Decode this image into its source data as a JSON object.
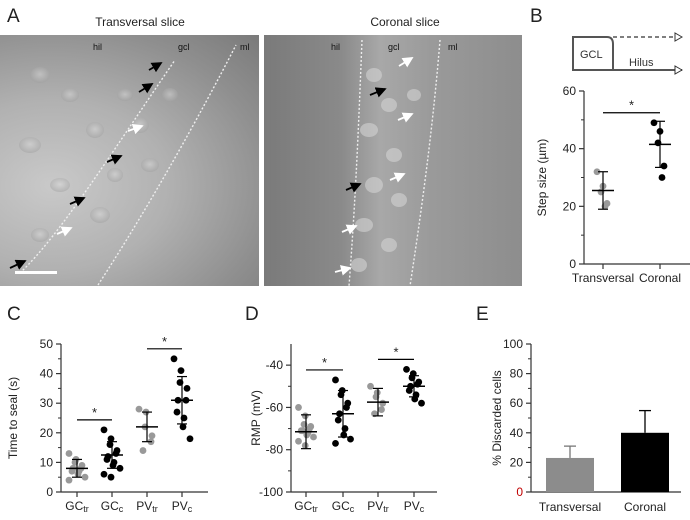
{
  "panels": {
    "a": {
      "letter": "A",
      "titles": [
        "Transversal slice",
        "Coronal slice"
      ],
      "layers_left": [
        "hil",
        "gcl",
        "ml"
      ],
      "layers_right": [
        "hil",
        "gcl",
        "ml"
      ]
    },
    "b": {
      "letter": "B",
      "schematic": {
        "gcl_label": "GCL",
        "hilus_label": "Hilus"
      }
    },
    "c": {
      "letter": "C"
    },
    "d": {
      "letter": "D"
    },
    "e": {
      "letter": "E"
    }
  },
  "chart_data": [
    {
      "id": "B",
      "type": "scatter",
      "xlabel": "",
      "ylabel": "Step size (µm)",
      "ylim": [
        0,
        60
      ],
      "yticks": [
        0,
        20,
        40,
        60
      ],
      "categories": [
        "Transversal",
        "Coronal"
      ],
      "series": [
        {
          "points": [
            32,
            27,
            25,
            21,
            20
          ],
          "mean": 25.5,
          "sd": 6.5,
          "color": "#999999"
        },
        {
          "points": [
            49,
            46,
            42,
            34,
            30
          ],
          "mean": 41.5,
          "sd": 8,
          "color": "#000000"
        }
      ],
      "significance": [
        {
          "between": [
            0,
            1
          ],
          "label": "*"
        }
      ]
    },
    {
      "id": "C",
      "type": "scatter",
      "xlabel": "",
      "ylabel": "Time to seal (s)",
      "ylim": [
        0,
        50
      ],
      "yticks": [
        0,
        10,
        20,
        30,
        40,
        50
      ],
      "categories": [
        {
          "main": "GC",
          "sub": "tr"
        },
        {
          "main": "GC",
          "sub": "c"
        },
        {
          "main": "PV",
          "sub": "tr"
        },
        {
          "main": "PV",
          "sub": "c"
        }
      ],
      "series": [
        {
          "points": [
            13,
            11,
            10,
            9,
            8,
            8,
            7,
            7,
            6,
            5,
            4
          ],
          "mean": 8,
          "sd": 3,
          "color": "#999999"
        },
        {
          "points": [
            21,
            18,
            16,
            14,
            13,
            12,
            11,
            10,
            9,
            8,
            6,
            5
          ],
          "mean": 12.5,
          "sd": 4.5,
          "color": "#000000"
        },
        {
          "points": [
            28,
            27,
            22,
            19,
            17,
            14
          ],
          "mean": 22,
          "sd": 5,
          "color": "#999999"
        },
        {
          "points": [
            45,
            41,
            37,
            35,
            31,
            31,
            27,
            25,
            22,
            18
          ],
          "mean": 31,
          "sd": 8,
          "color": "#000000"
        }
      ],
      "significance": [
        {
          "between": [
            0,
            1
          ],
          "label": "*"
        },
        {
          "between": [
            2,
            3
          ],
          "label": "*"
        }
      ]
    },
    {
      "id": "D",
      "type": "scatter",
      "xlabel": "",
      "ylabel": "RMP (mV)",
      "ylim": [
        -100,
        -30
      ],
      "yticks": [
        -100,
        -80,
        -60,
        -40
      ],
      "categories": [
        {
          "main": "GC",
          "sub": "tr"
        },
        {
          "main": "GC",
          "sub": "c"
        },
        {
          "main": "PV",
          "sub": "tr"
        },
        {
          "main": "PV",
          "sub": "c"
        }
      ],
      "series": [
        {
          "points": [
            -60,
            -64,
            -68,
            -69,
            -70,
            -71,
            -71,
            -72,
            -73,
            -74,
            -76,
            -78
          ],
          "mean": -71.5,
          "sd": 8,
          "color": "#999999"
        },
        {
          "points": [
            -47,
            -52,
            -54,
            -58,
            -60,
            -63,
            -66,
            -70,
            -73,
            -75,
            -77
          ],
          "mean": -63,
          "sd": 11,
          "color": "#000000"
        },
        {
          "points": [
            -50,
            -53,
            -55,
            -58,
            -61,
            -63
          ],
          "mean": -57.5,
          "sd": 6.5,
          "color": "#999999"
        },
        {
          "points": [
            -42,
            -44,
            -46,
            -48,
            -49,
            -50,
            -52,
            -54,
            -56,
            -58
          ],
          "mean": -50,
          "sd": 5,
          "color": "#000000"
        }
      ],
      "significance": [
        {
          "between": [
            0,
            1
          ],
          "label": "*"
        },
        {
          "between": [
            2,
            3
          ],
          "label": "*"
        }
      ]
    },
    {
      "id": "E",
      "type": "bar",
      "xlabel": "",
      "ylabel": "% Discarded cells",
      "ylim": [
        0,
        100
      ],
      "yticks": [
        0,
        20,
        40,
        60,
        80,
        100
      ],
      "categories": [
        "Transversal",
        "Coronal"
      ],
      "values": [
        23,
        40
      ],
      "errors": [
        8,
        15
      ],
      "colors": [
        "#8c8c8c",
        "#000000"
      ]
    }
  ]
}
